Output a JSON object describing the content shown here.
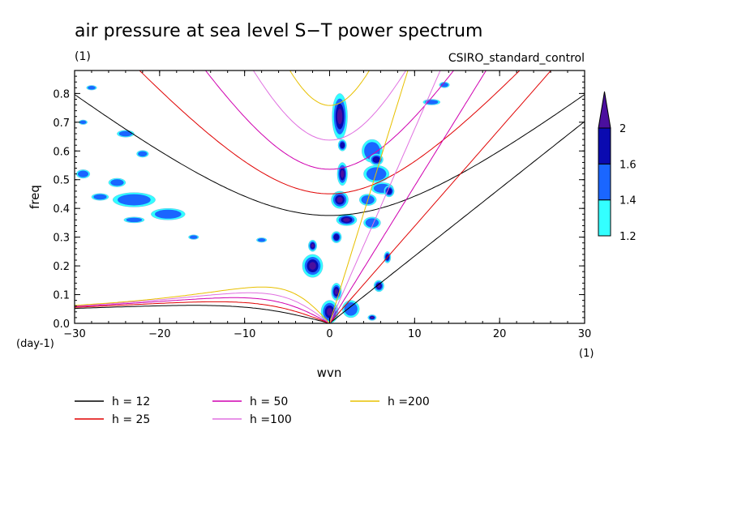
{
  "chart_data": {
    "type": "contour",
    "title": "air pressure at sea level S−T power spectrum",
    "subtitle_left": "(1)",
    "subtitle_right": "CSIRO_standard_control",
    "xlabel": "wvn",
    "ylabel": "freq",
    "x_unit_label": "(1)",
    "y_unit_label": "(day-1)",
    "xlim": [
      -30,
      30
    ],
    "ylim": [
      0,
      0.88
    ],
    "x_ticks": [
      -30,
      -20,
      -10,
      0,
      10,
      20,
      30
    ],
    "x_tick_labels": [
      "−30",
      "−20",
      "−10",
      "0",
      "10",
      "20",
      "30"
    ],
    "y_ticks": [
      0.0,
      0.1,
      0.2,
      0.3,
      0.4,
      0.5,
      0.6,
      0.7,
      0.8
    ],
    "y_tick_labels": [
      "0.0",
      "0.1",
      "0.2",
      "0.3",
      "0.4",
      "0.5",
      "0.6",
      "0.7",
      "0.8"
    ],
    "colorbar": {
      "levels": [
        1.2,
        1.4,
        1.6,
        2
      ],
      "labels": [
        "1.2",
        "1.4",
        "1.6",
        "2"
      ],
      "colors": [
        "#33ffff",
        "#1a66ff",
        "#0a0ab0",
        "#4b0f9e"
      ]
    },
    "dispersion_curves": [
      {
        "label": "h = 12",
        "h": 12,
        "color": "#000000"
      },
      {
        "label": "h = 25",
        "h": 25,
        "color": "#e00000"
      },
      {
        "label": "h = 50",
        "h": 50,
        "color": "#d000b0"
      },
      {
        "label": "h =100",
        "h": 100,
        "color": "#e070e0"
      },
      {
        "label": "h =200",
        "h": 200,
        "color": "#e8c000"
      }
    ],
    "power_blobs": [
      {
        "x": 1.2,
        "y": 0.72,
        "rx": 0.9,
        "ry": 0.08,
        "level": 3
      },
      {
        "x": 1.5,
        "y": 0.62,
        "rx": 0.5,
        "ry": 0.02,
        "level": 2
      },
      {
        "x": 1.5,
        "y": 0.52,
        "rx": 0.6,
        "ry": 0.04,
        "level": 3
      },
      {
        "x": 1.2,
        "y": 0.43,
        "rx": 1.0,
        "ry": 0.03,
        "level": 3
      },
      {
        "x": 2.0,
        "y": 0.36,
        "rx": 1.2,
        "ry": 0.02,
        "level": 3
      },
      {
        "x": 0.8,
        "y": 0.3,
        "rx": 0.6,
        "ry": 0.02,
        "level": 2
      },
      {
        "x": -2.0,
        "y": 0.2,
        "rx": 1.2,
        "ry": 0.04,
        "level": 3
      },
      {
        "x": -2.0,
        "y": 0.27,
        "rx": 0.5,
        "ry": 0.02,
        "level": 3
      },
      {
        "x": 0.8,
        "y": 0.11,
        "rx": 0.6,
        "ry": 0.03,
        "level": 3
      },
      {
        "x": 0.0,
        "y": 0.04,
        "rx": 1.0,
        "ry": 0.04,
        "level": 3
      },
      {
        "x": 2.5,
        "y": 0.05,
        "rx": 1.0,
        "ry": 0.03,
        "level": 1
      },
      {
        "x": 5.0,
        "y": 0.02,
        "rx": 0.5,
        "ry": 0.01,
        "level": 3
      },
      {
        "x": 5.8,
        "y": 0.13,
        "rx": 0.6,
        "ry": 0.02,
        "level": 3
      },
      {
        "x": 6.8,
        "y": 0.23,
        "rx": 0.4,
        "ry": 0.02,
        "level": 2
      },
      {
        "x": 5.0,
        "y": 0.6,
        "rx": 1.2,
        "ry": 0.04,
        "level": 1
      },
      {
        "x": 5.5,
        "y": 0.52,
        "rx": 1.5,
        "ry": 0.03,
        "level": 1
      },
      {
        "x": 6.2,
        "y": 0.47,
        "rx": 1.3,
        "ry": 0.02,
        "level": 1
      },
      {
        "x": 4.5,
        "y": 0.43,
        "rx": 1.0,
        "ry": 0.02,
        "level": 1
      },
      {
        "x": 5.0,
        "y": 0.35,
        "rx": 1.0,
        "ry": 0.02,
        "level": 1
      },
      {
        "x": 5.5,
        "y": 0.57,
        "rx": 0.8,
        "ry": 0.02,
        "level": 2
      },
      {
        "x": 7.0,
        "y": 0.46,
        "rx": 0.6,
        "ry": 0.02,
        "level": 2
      },
      {
        "x": -23.0,
        "y": 0.43,
        "rx": 2.5,
        "ry": 0.025,
        "level": 1
      },
      {
        "x": -19.0,
        "y": 0.38,
        "rx": 2.0,
        "ry": 0.02,
        "level": 1
      },
      {
        "x": -25.0,
        "y": 0.49,
        "rx": 1.0,
        "ry": 0.015,
        "level": 1
      },
      {
        "x": -24.0,
        "y": 0.66,
        "rx": 1.0,
        "ry": 0.012,
        "level": 1
      },
      {
        "x": -29.0,
        "y": 0.52,
        "rx": 0.8,
        "ry": 0.015,
        "level": 1
      },
      {
        "x": -22.0,
        "y": 0.59,
        "rx": 0.7,
        "ry": 0.012,
        "level": 1
      },
      {
        "x": -27.0,
        "y": 0.44,
        "rx": 1.0,
        "ry": 0.012,
        "level": 1
      },
      {
        "x": -23.0,
        "y": 0.36,
        "rx": 1.2,
        "ry": 0.01,
        "level": 1
      },
      {
        "x": -28.0,
        "y": 0.82,
        "rx": 0.6,
        "ry": 0.008,
        "level": 1
      },
      {
        "x": -29.0,
        "y": 0.7,
        "rx": 0.5,
        "ry": 0.008,
        "level": 1
      },
      {
        "x": 12.0,
        "y": 0.77,
        "rx": 1.0,
        "ry": 0.01,
        "level": 1
      },
      {
        "x": 13.5,
        "y": 0.83,
        "rx": 0.6,
        "ry": 0.01,
        "level": 1
      },
      {
        "x": -8.0,
        "y": 0.29,
        "rx": 0.6,
        "ry": 0.008,
        "level": 1
      },
      {
        "x": -16.0,
        "y": 0.3,
        "rx": 0.6,
        "ry": 0.008,
        "level": 1
      }
    ]
  }
}
